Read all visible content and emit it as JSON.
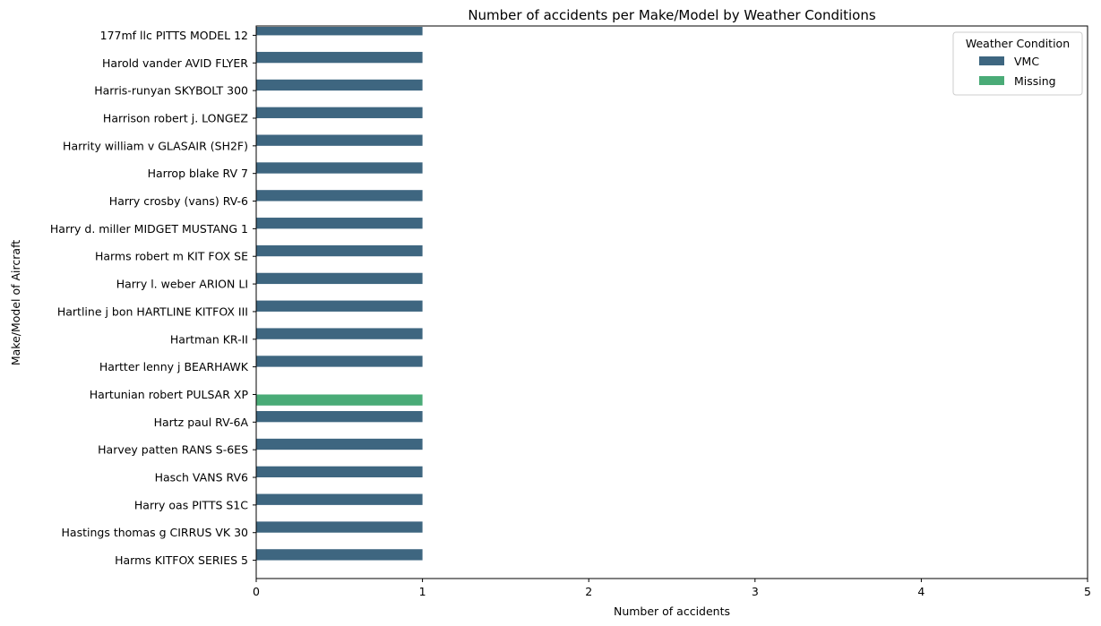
{
  "chart_data": {
    "type": "bar",
    "orientation": "horizontal",
    "title": "Number of accidents per Make/Model by Weather Conditions",
    "xlabel": "Number of accidents",
    "ylabel": "Make/Model of Aircraft",
    "xlim": [
      0,
      5
    ],
    "xticks": [
      "0",
      "1",
      "2",
      "3",
      "4",
      "5"
    ],
    "grid": false,
    "legend": {
      "title": "Weather Condition",
      "placement": "top-right",
      "entries": [
        {
          "name": "VMC",
          "color": "#3e6680"
        },
        {
          "name": "Missing",
          "color": "#4aab77"
        }
      ]
    },
    "categories": [
      "177mf llc PITTS MODEL 12",
      "Harold vander AVID FLYER",
      "Harris-runyan SKYBOLT 300",
      "Harrison robert j. LONGEZ",
      "Harrity william v GLASAIR (SH2F)",
      "Harrop blake RV 7",
      "Harry crosby (vans) RV-6",
      "Harry d. miller MIDGET MUSTANG 1",
      "Harms robert m KIT FOX SE",
      "Harry l. weber ARION LI",
      "Hartline j bon HARTLINE KITFOX III",
      "Hartman KR-II",
      "Hartter lenny j BEARHAWK",
      "Hartunian robert PULSAR XP",
      "Hartz paul RV-6A",
      "Harvey patten RANS S-6ES",
      "Hasch VANS RV6",
      "Harry oas PITTS S1C",
      "Hastings thomas g CIRRUS VK 30",
      "Harms KITFOX SERIES 5"
    ],
    "series": [
      {
        "name": "VMC",
        "color": "#3e6680",
        "values": [
          1,
          1,
          1,
          1,
          1,
          1,
          1,
          1,
          1,
          1,
          1,
          1,
          1,
          0,
          1,
          1,
          1,
          1,
          1,
          1
        ]
      },
      {
        "name": "Missing",
        "color": "#4aab77",
        "values": [
          0,
          0,
          0,
          0,
          0,
          0,
          0,
          0,
          0,
          0,
          0,
          0,
          0,
          1,
          0,
          0,
          0,
          0,
          0,
          0
        ]
      }
    ]
  }
}
